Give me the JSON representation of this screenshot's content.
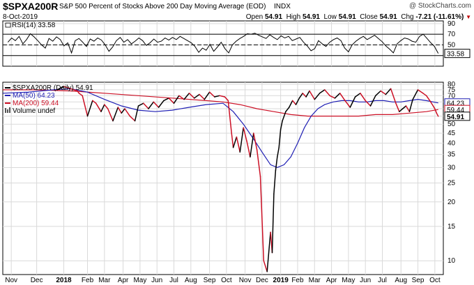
{
  "header": {
    "symbol": "$SPXA200R",
    "description": "S&P 500 Percent of Stocks Above 200 Day Moving Average (EOD)",
    "exchange": "INDX",
    "credit": "@ StockCharts.com",
    "date": "8-Oct-2019",
    "open_label": "Open",
    "open": "54.91",
    "high_label": "High",
    "high": "54.91",
    "low_label": "Low",
    "low": "54.91",
    "close_label": "Close",
    "close": "54.91",
    "chg_label": "Chg",
    "chg": "-7.21 (-11.61%)",
    "chg_marker": "▼"
  },
  "colors": {
    "price": "#000000",
    "ma50": "#1f1fb4",
    "ma200": "#cc1025",
    "rsi": "#000000",
    "grid": "#d9d9d9",
    "rsi_guides": "#000000"
  },
  "chart_data": [
    {
      "id": "rsi",
      "type": "line",
      "legend": "RSI(14) 33.58",
      "last_label": "33.58",
      "y_ticks": [
        30,
        50,
        70,
        90
      ],
      "guides": [
        30,
        50,
        70
      ],
      "ylim": [
        10,
        95
      ],
      "series": [
        {
          "name": "RSI(14)",
          "values": [
            55,
            63,
            58,
            66,
            52,
            60,
            71,
            65,
            58,
            50,
            44,
            62,
            57,
            65,
            60,
            48,
            54,
            35,
            58,
            62,
            55,
            47,
            61,
            57,
            63,
            59,
            50,
            38,
            46,
            58,
            64,
            55,
            60,
            52,
            57,
            63,
            58,
            49,
            54,
            61,
            55,
            57,
            63,
            59,
            64,
            60,
            66,
            62,
            58,
            54,
            47,
            36,
            44,
            40,
            51,
            38,
            46,
            55,
            43,
            35,
            50,
            57,
            62,
            66,
            71,
            70,
            72,
            68,
            65,
            62,
            69,
            64,
            60,
            67,
            63,
            66,
            58,
            61,
            64,
            55,
            48,
            39,
            43,
            58,
            52,
            47,
            55,
            60,
            63,
            58,
            44,
            37,
            50,
            57,
            62,
            66,
            60,
            64,
            68,
            62,
            56,
            48,
            42,
            35,
            52,
            58,
            63,
            61,
            57,
            55,
            66,
            70,
            62,
            54,
            47,
            34
          ]
        }
      ]
    },
    {
      "id": "price",
      "type": "line",
      "title": "$SPXA200R (Daily) 54.91",
      "legend": [
        {
          "name": "$SPXA200R (Daily) 54.91",
          "color_key": "price"
        },
        {
          "name": "MA(50) 64.23",
          "color_key": "ma50"
        },
        {
          "name": "MA(200) 59.44",
          "color_key": "ma200"
        },
        {
          "name": "Volume undef",
          "color_key": "price"
        }
      ],
      "y_scale": "log",
      "ylim": [
        8.5,
        82
      ],
      "y_ticks": [
        10,
        15,
        20,
        25,
        30,
        35,
        40,
        45,
        50,
        55,
        60,
        65,
        70,
        75,
        80
      ],
      "last_labels": [
        {
          "text": "64.23",
          "value": 64.23,
          "color_key": "ma50"
        },
        {
          "text": "59.44",
          "value": 59.44,
          "color_key": "ma200"
        },
        {
          "text": "54.91",
          "value": 54.91,
          "color_key": "price"
        }
      ],
      "x_labels": [
        {
          "label": "Nov",
          "pos": 0.5,
          "bold": false
        },
        {
          "label": "Dec",
          "pos": 2.0,
          "bold": false
        },
        {
          "label": "2018",
          "pos": 3.6,
          "bold": true
        },
        {
          "label": "Feb",
          "pos": 5.0,
          "bold": false
        },
        {
          "label": "Mar",
          "pos": 6.0,
          "bold": false
        },
        {
          "label": "Apr",
          "pos": 7.1,
          "bold": false
        },
        {
          "label": "May",
          "pos": 8.1,
          "bold": false
        },
        {
          "label": "Jun",
          "pos": 9.1,
          "bold": false
        },
        {
          "label": "Jul",
          "pos": 10.1,
          "bold": false
        },
        {
          "label": "Aug",
          "pos": 11.1,
          "bold": false
        },
        {
          "label": "Sep",
          "pos": 12.2,
          "bold": false
        },
        {
          "label": "Oct",
          "pos": 13.2,
          "bold": false
        },
        {
          "label": "Nov",
          "pos": 14.3,
          "bold": false
        },
        {
          "label": "Dec",
          "pos": 15.3,
          "bold": false
        },
        {
          "label": "2019",
          "pos": 16.4,
          "bold": true
        },
        {
          "label": "Feb",
          "pos": 17.4,
          "bold": false
        },
        {
          "label": "Mar",
          "pos": 18.4,
          "bold": false
        },
        {
          "label": "Apr",
          "pos": 19.4,
          "bold": false
        },
        {
          "label": "May",
          "pos": 20.4,
          "bold": false
        },
        {
          "label": "Jun",
          "pos": 21.4,
          "bold": false
        },
        {
          "label": "Jul",
          "pos": 22.4,
          "bold": false
        },
        {
          "label": "Aug",
          "pos": 23.5,
          "bold": false
        },
        {
          "label": "Sep",
          "pos": 24.5,
          "bold": false
        },
        {
          "label": "Oct",
          "pos": 25.5,
          "bold": false
        }
      ],
      "x_range": [
        0,
        26
      ],
      "series": [
        {
          "name": "$SPXA200R (Daily)",
          "color_key": "price",
          "segment_colors": true,
          "x": [
            3.2,
            3.6,
            4.0,
            4.4,
            4.5,
            4.7,
            5.0,
            5.3,
            5.5,
            5.8,
            6.0,
            6.2,
            6.5,
            6.8,
            7.0,
            7.2,
            7.5,
            7.8,
            8.0,
            8.3,
            8.6,
            8.9,
            9.2,
            9.5,
            9.8,
            10.1,
            10.4,
            10.7,
            11.0,
            11.3,
            11.6,
            11.9,
            12.2,
            12.5,
            12.8,
            13.1,
            13.3,
            13.5,
            13.6,
            13.8,
            14.0,
            14.2,
            14.4,
            14.6,
            14.8,
            15.0,
            15.2,
            15.4,
            15.6,
            15.8,
            15.9,
            16.0,
            16.1,
            16.2,
            16.3,
            16.4,
            16.5,
            16.7,
            16.9,
            17.1,
            17.3,
            17.5,
            17.7,
            17.9,
            18.1,
            18.4,
            18.7,
            19.0,
            19.3,
            19.6,
            19.9,
            20.2,
            20.5,
            20.8,
            21.1,
            21.4,
            21.7,
            22.0,
            22.3,
            22.6,
            22.9,
            23.2,
            23.4,
            23.6,
            23.8,
            24.0,
            24.2,
            24.5,
            24.8,
            25.0,
            25.2,
            25.4,
            25.5,
            25.6,
            25.7
          ],
          "values": [
            75,
            78,
            76,
            74,
            72,
            70,
            55,
            66,
            64,
            58,
            63,
            60,
            52,
            61,
            57,
            60,
            55,
            52,
            62,
            64,
            60,
            65,
            61,
            66,
            68,
            64,
            70,
            67,
            72,
            68,
            71,
            67,
            73,
            69,
            70,
            69,
            66,
            45,
            38,
            43,
            36,
            48,
            41,
            34,
            45,
            37,
            27,
            10,
            8.8,
            14,
            11,
            22,
            29,
            34,
            38,
            47,
            52,
            58,
            61,
            66,
            63,
            68,
            72,
            69,
            74,
            67,
            72,
            75,
            70,
            68,
            72,
            66,
            61,
            69,
            72,
            66,
            62,
            70,
            74,
            71,
            76,
            64,
            58,
            60,
            62,
            58,
            67,
            75,
            72,
            70,
            66,
            62,
            60,
            57,
            54.91
          ]
        },
        {
          "name": "MA(50)",
          "color_key": "ma50",
          "x": [
            0,
            1.5,
            3.0,
            4.0,
            5.0,
            6.0,
            7.0,
            8.0,
            9.0,
            10.0,
            11.0,
            12.0,
            13.0,
            13.6,
            14.2,
            14.8,
            15.3,
            15.8,
            16.2,
            16.6,
            17.0,
            17.4,
            17.8,
            18.2,
            18.6,
            19.0,
            19.5,
            20.0,
            20.5,
            21.0,
            21.5,
            22.0,
            22.5,
            23.0,
            23.5,
            24.0,
            24.5,
            25.0,
            25.4,
            25.7
          ],
          "values": [
            72,
            73,
            75,
            76,
            73,
            67,
            62,
            59,
            58,
            59,
            61,
            63,
            64,
            58,
            50,
            42,
            36,
            31,
            30,
            31,
            34,
            40,
            48,
            55,
            60,
            63,
            65,
            66,
            66,
            65,
            65,
            66,
            66,
            65,
            65,
            66,
            67,
            66,
            65,
            64.23
          ]
        },
        {
          "name": "MA(200)",
          "color_key": "ma200",
          "x": [
            0,
            2,
            4,
            6,
            8,
            10,
            12,
            13,
            14,
            15,
            16,
            17,
            18,
            19,
            20,
            21,
            22,
            23,
            24,
            25,
            25.7
          ],
          "values": [
            75,
            75,
            74,
            72,
            70,
            68,
            66,
            65,
            63,
            60,
            58,
            56,
            55,
            55,
            55,
            55,
            56,
            56,
            57,
            58,
            59.44
          ]
        }
      ]
    }
  ]
}
